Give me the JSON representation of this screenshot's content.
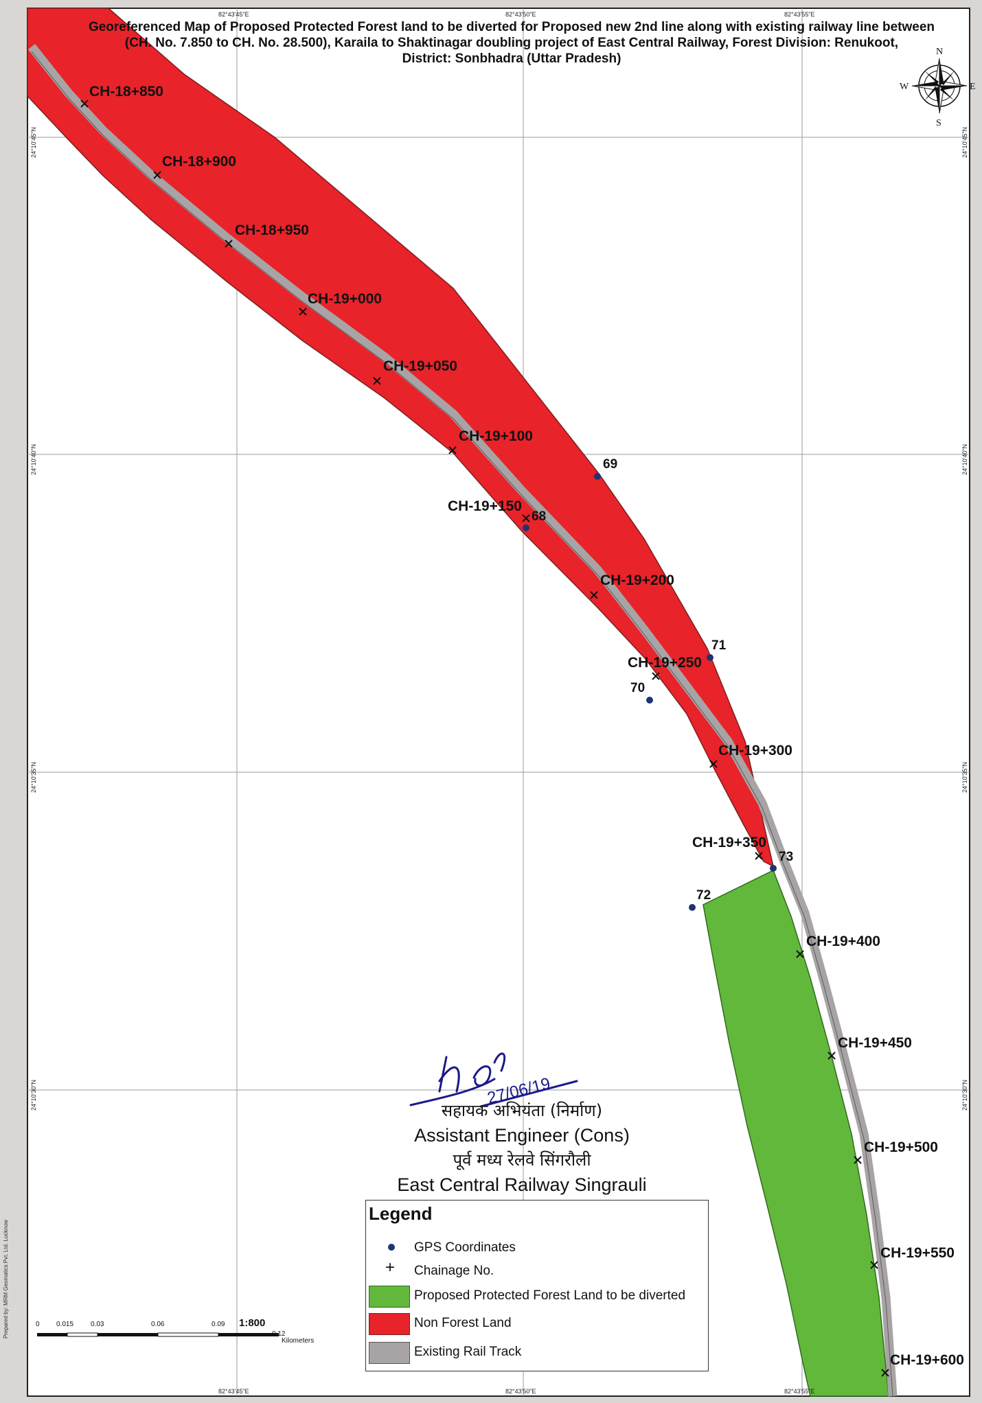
{
  "title": {
    "line1": "Georeferenced Map of Proposed Protected Forest land to be diverted for Proposed new 2nd line along with existing railway line between",
    "line2": "(CH. No. 7.850 to CH. No. 28.500), Karaila to Shaktinagar doubling project of East Central Railway, Forest Division: Renukoot,",
    "line3": "District: Sonbhadra (Uttar Pradesh)"
  },
  "compass": {
    "n": "N",
    "s": "S",
    "e": "E",
    "w": "W"
  },
  "grid_labels": {
    "top": [
      "82°43'45\"E",
      "82°43'50\"E",
      "82°43'55\"E"
    ],
    "bottom": [
      "82°43'45\"E",
      "82°43'50\"E",
      "82°43'55\"E"
    ],
    "left": [
      "24°10'45\"N",
      "24°10'40\"N",
      "24°10'35\"N",
      "24°10'30\"N"
    ],
    "right": [
      "24°10'45\"N",
      "24°10'40\"N",
      "24°10'35\"N",
      "24°10'30\"N"
    ]
  },
  "chainages": [
    "CH-18+850",
    "CH-18+900",
    "CH-18+950",
    "CH-19+000",
    "CH-19+050",
    "CH-19+100",
    "CH-19+150",
    "CH-19+200",
    "CH-19+250",
    "CH-19+300",
    "CH-19+350",
    "CH-19+400",
    "CH-19+450",
    "CH-19+500",
    "CH-19+550",
    "CH-19+600"
  ],
  "gps_points": [
    "68",
    "69",
    "70",
    "71",
    "72",
    "73"
  ],
  "signature": {
    "hi_title": "सहायक अभियंता (निर्माण)",
    "en_title": "Assistant Engineer (Cons)",
    "hi_org": "पूर्व मध्य रेलवे सिंगरौली",
    "en_org": "East Central Railway Singrauli",
    "date": "27/06/19"
  },
  "legend": {
    "title": "Legend",
    "items": [
      {
        "label": "GPS Coordinates",
        "symbol": "dot",
        "color": "#1f3470"
      },
      {
        "label": "Chainage No.",
        "symbol": "plus",
        "color": "#111111"
      },
      {
        "label": "Proposed Protected Forest Land to be diverted",
        "symbol": "fill",
        "color": "#62b83a"
      },
      {
        "label": "Non Forest Land",
        "symbol": "fill",
        "color": "#e8232a"
      },
      {
        "label": "Existing Rail Track",
        "symbol": "fill",
        "color": "#a8a4a6"
      }
    ]
  },
  "scale": {
    "ticks": [
      "0",
      "0.015",
      "0.03",
      "0.06",
      "0.09",
      "0.12"
    ],
    "ratio": "1:800",
    "unit": "Kilometers"
  },
  "side_note": "Prepared by: MRM Geomatics Pvt. Ltd. Lucknow"
}
